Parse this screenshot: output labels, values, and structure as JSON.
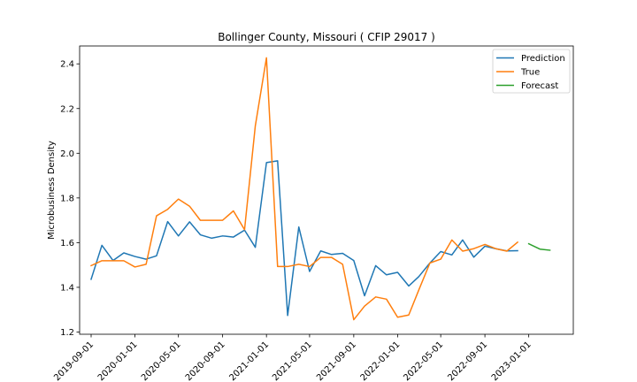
{
  "chart_data": {
    "type": "line",
    "title": "Bollinger County, Missouri ( CFIP 29017 )",
    "xlabel": "",
    "ylabel": "Microbusiness Density",
    "ylim": [
      1.19,
      2.48
    ],
    "xlim": [
      "2019-07-31",
      "2023-05-05"
    ],
    "yticks": [
      1.2,
      1.4,
      1.6,
      1.8,
      2.0,
      2.2,
      2.4
    ],
    "ytick_labels": [
      "1.2",
      "1.4",
      "1.6",
      "1.8",
      "2.0",
      "2.2",
      "2.4"
    ],
    "xticks": [
      "2019-09-01",
      "2020-01-01",
      "2020-05-01",
      "2020-09-01",
      "2021-01-01",
      "2021-05-01",
      "2021-09-01",
      "2022-01-01",
      "2022-05-01",
      "2022-09-01",
      "2023-01-01"
    ],
    "grid": false,
    "legend_position": "top-right",
    "series": [
      {
        "name": "Prediction",
        "color": "#1f77b4",
        "x": [
          "2019-09-01",
          "2019-10-01",
          "2019-11-01",
          "2019-12-01",
          "2020-01-01",
          "2020-02-01",
          "2020-03-01",
          "2020-04-01",
          "2020-05-01",
          "2020-06-01",
          "2020-07-01",
          "2020-08-01",
          "2020-09-01",
          "2020-10-01",
          "2020-11-01",
          "2020-12-01",
          "2021-01-01",
          "2021-02-01",
          "2021-03-01",
          "2021-04-01",
          "2021-05-01",
          "2021-06-01",
          "2021-07-01",
          "2021-08-01",
          "2021-09-01",
          "2021-10-01",
          "2021-11-01",
          "2021-12-01",
          "2022-01-01",
          "2022-02-01",
          "2022-03-01",
          "2022-04-01",
          "2022-05-01",
          "2022-06-01",
          "2022-07-01",
          "2022-08-01",
          "2022-09-01",
          "2022-10-01",
          "2022-11-01",
          "2022-12-01"
        ],
        "values": [
          1.436,
          1.588,
          1.52,
          1.554,
          1.538,
          1.526,
          1.541,
          1.694,
          1.63,
          1.693,
          1.635,
          1.62,
          1.63,
          1.625,
          1.656,
          1.579,
          1.958,
          1.966,
          1.274,
          1.67,
          1.471,
          1.563,
          1.547,
          1.552,
          1.52,
          1.362,
          1.497,
          1.456,
          1.467,
          1.406,
          1.448,
          1.509,
          1.56,
          1.545,
          1.612,
          1.535,
          1.584,
          1.573,
          1.563,
          1.564
        ]
      },
      {
        "name": "True",
        "color": "#ff7f0e",
        "x": [
          "2019-09-01",
          "2019-10-01",
          "2019-11-01",
          "2019-12-01",
          "2020-01-01",
          "2020-02-01",
          "2020-03-01",
          "2020-04-01",
          "2020-05-01",
          "2020-06-01",
          "2020-07-01",
          "2020-08-01",
          "2020-09-01",
          "2020-10-01",
          "2020-11-01",
          "2020-12-01",
          "2021-01-01",
          "2021-02-01",
          "2021-03-01",
          "2021-04-01",
          "2021-05-01",
          "2021-06-01",
          "2021-07-01",
          "2021-08-01",
          "2021-09-01",
          "2021-10-01",
          "2021-11-01",
          "2021-12-01",
          "2022-01-01",
          "2022-02-01",
          "2022-03-01",
          "2022-04-01",
          "2022-05-01",
          "2022-06-01",
          "2022-07-01",
          "2022-08-01",
          "2022-09-01",
          "2022-10-01",
          "2022-11-01",
          "2022-12-01"
        ],
        "values": [
          1.497,
          1.519,
          1.519,
          1.519,
          1.491,
          1.503,
          1.72,
          1.749,
          1.795,
          1.763,
          1.7,
          1.7,
          1.7,
          1.742,
          1.658,
          2.123,
          2.427,
          1.493,
          1.493,
          1.503,
          1.493,
          1.534,
          1.534,
          1.503,
          1.255,
          1.316,
          1.357,
          1.347,
          1.266,
          1.276,
          1.388,
          1.509,
          1.526,
          1.612,
          1.562,
          1.573,
          1.592,
          1.573,
          1.562,
          1.602
        ]
      },
      {
        "name": "Forecast",
        "color": "#2ca02c",
        "x": [
          "2023-01-01",
          "2023-02-01",
          "2023-03-01"
        ],
        "values": [
          1.595,
          1.571,
          1.566
        ]
      }
    ]
  }
}
